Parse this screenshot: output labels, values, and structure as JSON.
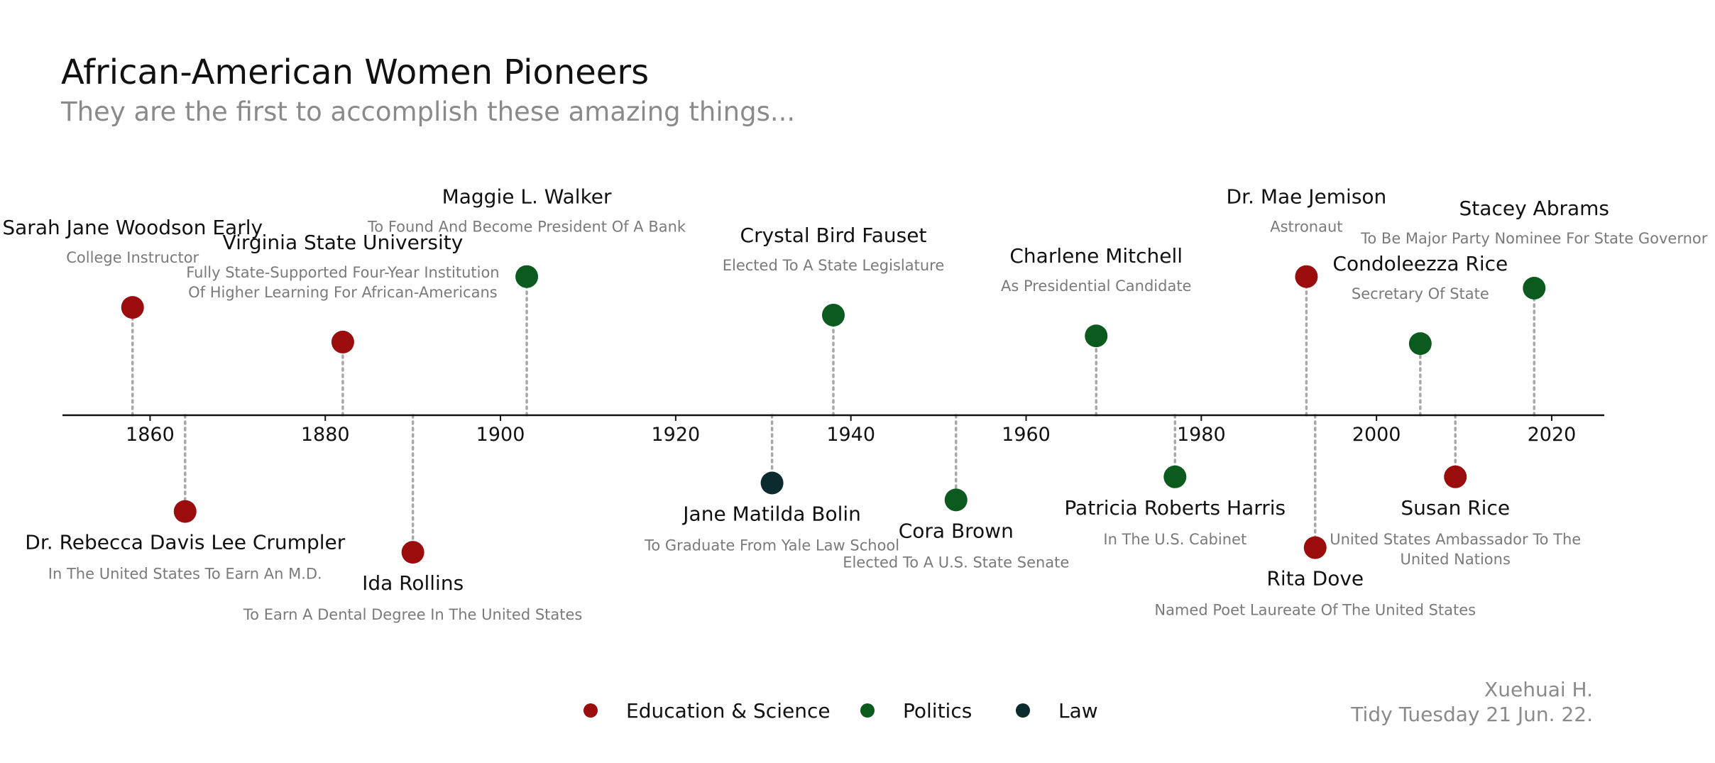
{
  "chart_data": {
    "type": "scatter",
    "title": "African-American Women Pioneers",
    "subtitle": "They are the first to accomplish these amazing things...",
    "xlim": [
      1850,
      2026
    ],
    "ylim": [
      -1.75,
      2.2
    ],
    "x_ticks": [
      1860,
      1880,
      1900,
      1920,
      1940,
      1960,
      1980,
      2000,
      2020
    ],
    "categories": [
      {
        "name": "Education & Science",
        "color": "#9b0c0c"
      },
      {
        "name": "Politics",
        "color": "#0b5a1e"
      },
      {
        "name": "Law",
        "color": "#0c2b2f"
      }
    ],
    "events": [
      {
        "year": 1858,
        "height": 1.4,
        "category": "Education & Science",
        "name": "Sarah Jane Woodson Early",
        "desc": [
          "College Instructor"
        ]
      },
      {
        "year": 1864,
        "height": -1.25,
        "category": "Education & Science",
        "name": "Dr. Rebecca Davis Lee Crumpler",
        "desc": [
          "In The United States To Earn An M.D."
        ]
      },
      {
        "year": 1882,
        "height": 0.95,
        "category": "Education & Science",
        "name": "Virginia State University",
        "desc": [
          "Fully State-Supported Four-Year Institution",
          "Of Higher Learning For African-Americans"
        ]
      },
      {
        "year": 1890,
        "height": -1.78,
        "category": "Education & Science",
        "name": "Ida Rollins",
        "desc": [
          "To Earn A Dental Degree In The United States"
        ]
      },
      {
        "year": 1903,
        "height": 1.8,
        "category": "Politics",
        "name": "Maggie L. Walker",
        "desc": [
          "To Found And Become President Of A Bank"
        ]
      },
      {
        "year": 1931,
        "height": -0.88,
        "category": "Law",
        "name": "Jane Matilda Bolin",
        "desc": [
          "To Graduate From Yale Law School"
        ]
      },
      {
        "year": 1938,
        "height": 1.3,
        "category": "Politics",
        "name": "Crystal Bird Fauset",
        "desc": [
          "Elected To A State Legislature"
        ]
      },
      {
        "year": 1952,
        "height": -1.1,
        "category": "Politics",
        "name": "Cora Brown",
        "desc": [
          "Elected To A U.S. State Senate"
        ]
      },
      {
        "year": 1968,
        "height": 1.03,
        "category": "Politics",
        "name": "Charlene Mitchell",
        "desc": [
          "As Presidential Candidate"
        ]
      },
      {
        "year": 1977,
        "height": -0.8,
        "category": "Politics",
        "name": "Patricia Roberts Harris",
        "desc": [
          "In The U.S. Cabinet"
        ]
      },
      {
        "year": 1992,
        "height": 1.8,
        "category": "Education & Science",
        "name": "Dr. Mae Jemison",
        "desc": [
          "Astronaut"
        ]
      },
      {
        "year": 1993,
        "height": -1.72,
        "category": "Education & Science",
        "name": "Rita Dove",
        "desc": [
          "Named Poet Laureate Of The United States"
        ]
      },
      {
        "year": 2005,
        "height": 0.93,
        "category": "Politics",
        "name": "Condoleezza Rice",
        "desc": [
          "Secretary Of State"
        ]
      },
      {
        "year": 2009,
        "height": -0.8,
        "category": "Education & Science",
        "name": "Susan Rice",
        "desc": [
          "United States Ambassador To The",
          "United Nations"
        ]
      },
      {
        "year": 2018,
        "height": 1.65,
        "category": "Politics",
        "name": "Stacey Abrams",
        "desc": [
          "To Be Major Party Nominee For State Governor"
        ]
      }
    ],
    "caption": [
      "Xuehuai H.",
      "Tidy Tuesday 21 Jun. 22."
    ]
  }
}
